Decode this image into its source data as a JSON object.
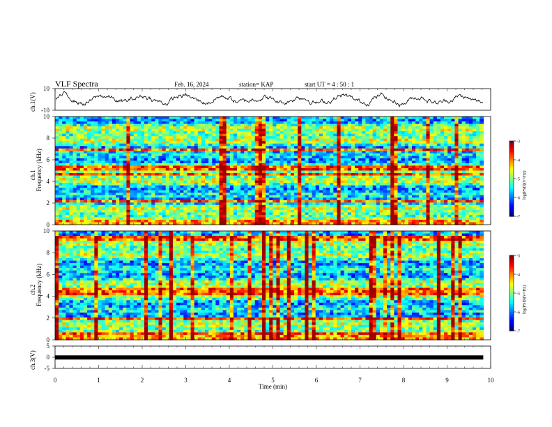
{
  "header": {
    "title": "VLF Spectra",
    "date": "Feb. 16, 2024",
    "station": "station= KAP",
    "start": "start UT = 4 : 50 : 1"
  },
  "chart_data": [
    {
      "type": "line",
      "ylabel": "ch.1(V)",
      "ylim": [
        -10,
        10
      ],
      "xlim": [
        0,
        9.83
      ],
      "yticks": [
        "10",
        "-10"
      ]
    },
    {
      "type": "heatmap",
      "ylabel": "ch.1",
      "ylabel2": "Frequency (kHz)",
      "ylim": [
        0,
        10
      ],
      "yticks": [
        "0",
        "2",
        "4",
        "6",
        "8",
        "10"
      ],
      "bright_band_khz": [
        0.3,
        2.2,
        4.7,
        5.2,
        6.9
      ],
      "colorbar": {
        "label": "log(PSD)(V²/Hz)",
        "range": [
          -7,
          -3
        ],
        "ticks": [
          "-3",
          "-4",
          "-5",
          "-6",
          "-7"
        ]
      }
    },
    {
      "type": "heatmap",
      "ylabel": "ch.2",
      "ylabel2": "Frequency (kHz)",
      "ylim": [
        0,
        10
      ],
      "yticks": [
        "0",
        "2",
        "4",
        "6",
        "8",
        "10"
      ],
      "bright_band_khz": [
        0.4,
        1.9,
        4.2,
        4.6,
        9.3
      ],
      "colorbar": {
        "label": "log(PSD)(V²/Hz)",
        "range": [
          -7,
          -3
        ],
        "ticks": [
          "-3",
          "-4",
          "-5",
          "-6",
          "-7"
        ]
      }
    },
    {
      "type": "line",
      "ylabel": "ch.3(V)",
      "ylim": [
        -5,
        5
      ],
      "yticks": [
        "5",
        "0",
        "-5"
      ],
      "constant_value": -0.1,
      "xlabel": "Time (min)",
      "xlim": [
        0,
        10
      ],
      "xticks": [
        "0",
        "1",
        "2",
        "3",
        "4",
        "5",
        "6",
        "7",
        "8",
        "9",
        "10"
      ]
    }
  ],
  "colors": {
    "frame": "#000000",
    "trace": "#000000"
  }
}
